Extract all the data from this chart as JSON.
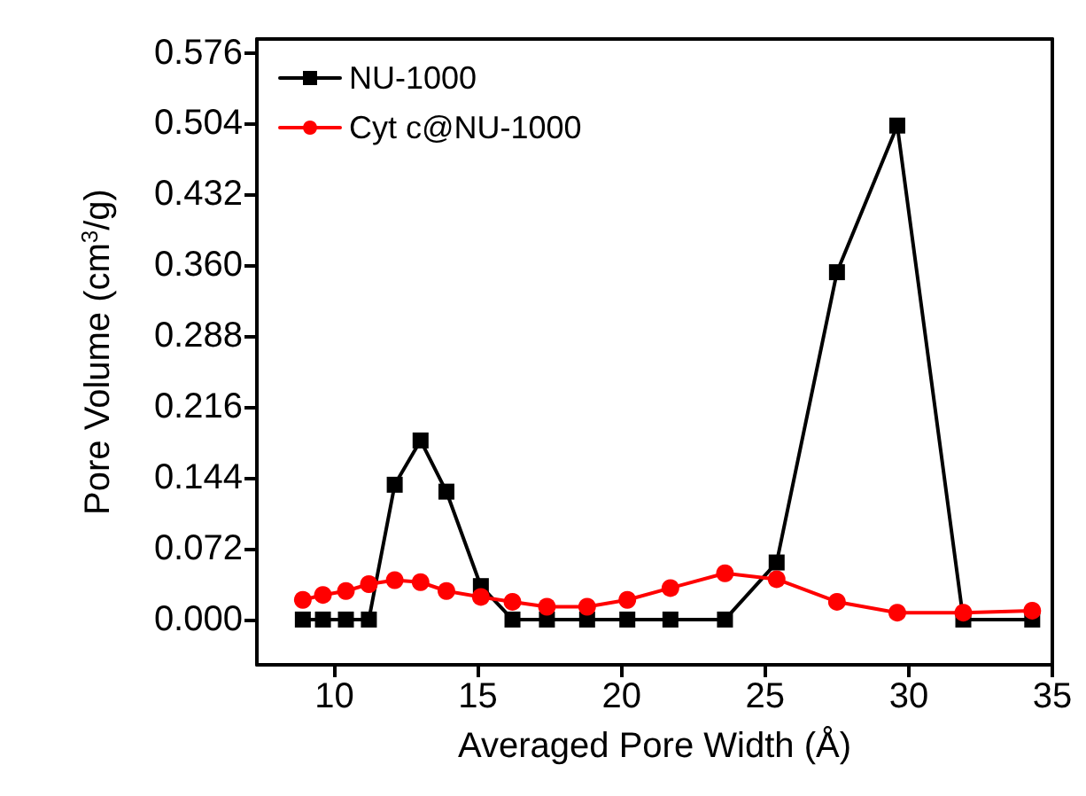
{
  "chart_data": {
    "type": "line",
    "xlabel": "Averaged Pore Width (Å)",
    "ylabel": "Pore Volume (cm$^{3}$/g)",
    "x": [
      8.9,
      9.6,
      10.4,
      11.2,
      12.1,
      13.0,
      13.9,
      15.1,
      16.2,
      17.4,
      18.8,
      20.2,
      21.7,
      23.6,
      25.4,
      27.5,
      29.6,
      31.9,
      34.3
    ],
    "series": [
      {
        "name": "NU-1000",
        "color": "#000000",
        "marker": "square",
        "values": [
          0,
          0,
          0,
          0,
          0.137,
          0.182,
          0.13,
          0.034,
          0,
          0,
          0,
          0,
          0,
          0,
          0.058,
          0.353,
          0.502,
          0,
          0
        ]
      },
      {
        "name": "Cyt c@NU-1000",
        "color": "#ff0000",
        "marker": "circle",
        "values": [
          0.02,
          0.025,
          0.029,
          0.036,
          0.04,
          0.038,
          0.029,
          0.023,
          0.018,
          0.013,
          0.013,
          0.02,
          0.032,
          0.047,
          0.041,
          0.018,
          0.007,
          0.007,
          0.009
        ]
      }
    ],
    "xlim": [
      7.3,
      35
    ],
    "xticks": [
      10,
      15,
      20,
      25,
      30,
      35
    ],
    "ylim": [
      -0.046,
      0.59
    ],
    "yticks": [
      {
        "value": 0,
        "label": "0.000"
      },
      {
        "value": 0.072,
        "label": "0.072"
      },
      {
        "value": 0.144,
        "label": "0.144"
      },
      {
        "value": 0.216,
        "label": "0.216"
      },
      {
        "value": 0.288,
        "label": "0.288"
      },
      {
        "value": 0.36,
        "label": "0.360"
      },
      {
        "value": 0.432,
        "label": "0.432"
      },
      {
        "value": 0.504,
        "label": "0.504"
      },
      {
        "value": 0.576,
        "label": "0.576"
      }
    ],
    "grid": false,
    "legend": "top left",
    "line_style": "solid"
  }
}
